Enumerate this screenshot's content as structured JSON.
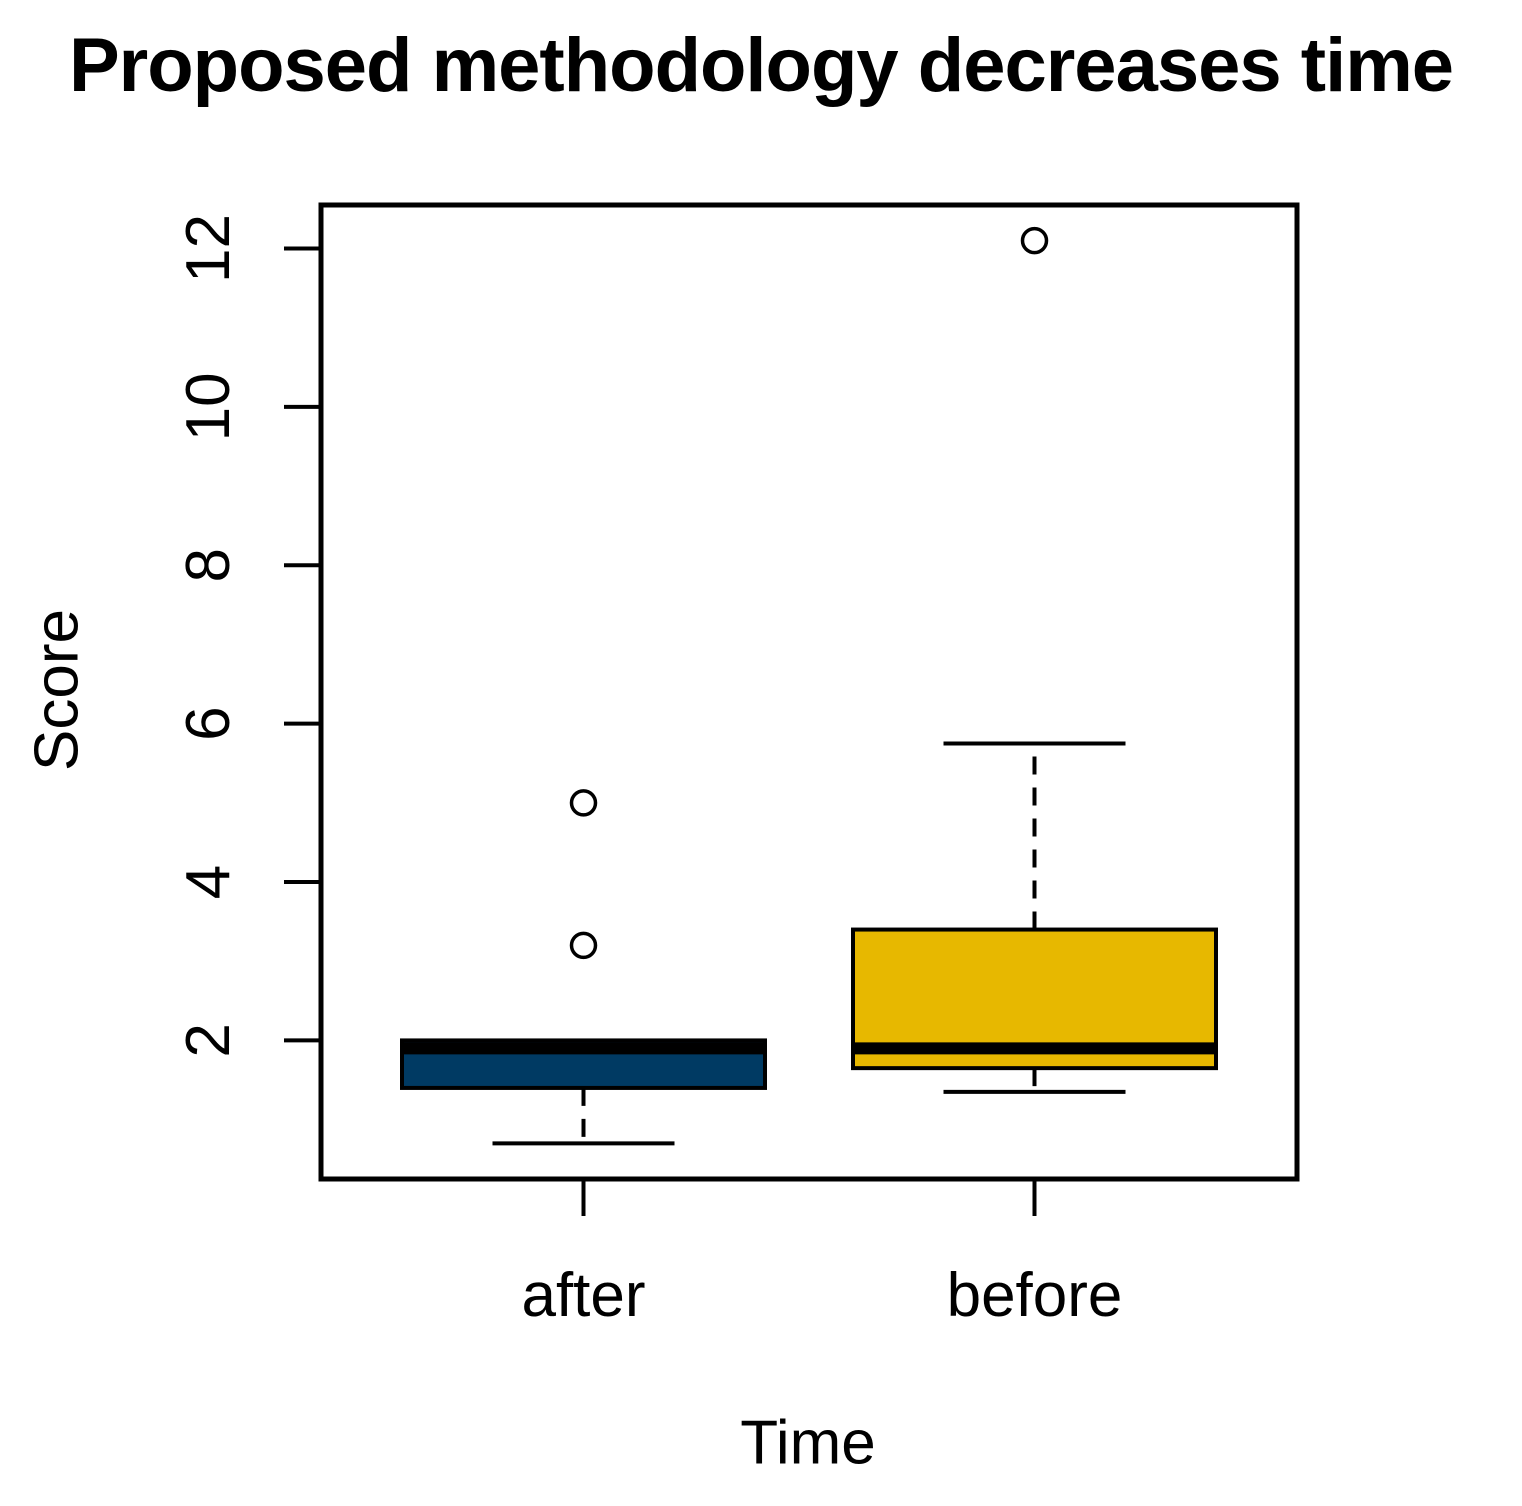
{
  "page": {
    "background": "#FFFFFF",
    "foreground": "#000000"
  },
  "chart_data": {
    "type": "boxplot",
    "title": "Proposed methodology decreases time",
    "xlabel": "Time",
    "ylabel": "Score",
    "ylim": [
      0.25,
      12.55
    ],
    "yticks": [
      2,
      4,
      6,
      8,
      10,
      12
    ],
    "ytick_labels": [
      "2",
      "4",
      "6",
      "8",
      "10",
      "12"
    ],
    "categories": [
      "after",
      "before"
    ],
    "grid": false,
    "legend": "none",
    "series": [
      {
        "name": "after",
        "box_color": "#003A63",
        "border_color": "#000000",
        "whisker_low": 0.7,
        "q1": 1.4,
        "median": 1.9,
        "q3": 2.0,
        "whisker_high": 2.0,
        "outliers": [
          3.2,
          5.0
        ]
      },
      {
        "name": "before",
        "box_color": "#E7B800",
        "border_color": "#000000",
        "whisker_low": 1.35,
        "q1": 1.65,
        "median": 1.9,
        "q3": 3.4,
        "whisker_high": 5.75,
        "outliers": [
          12.1
        ]
      }
    ]
  }
}
